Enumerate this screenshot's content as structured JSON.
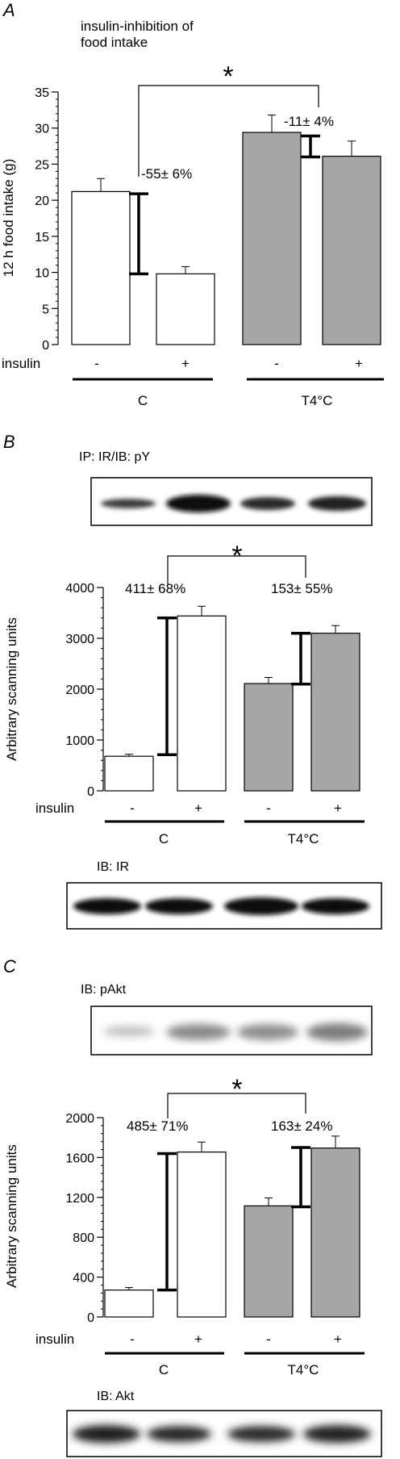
{
  "panel_a": {
    "letter": "A",
    "caption_line1": "insulin-inhibition of",
    "caption_line2": "food intake",
    "star": "*",
    "percent_left": "-55± 6%",
    "percent_right": "-11± 4%",
    "insulin_label": "insulin",
    "minus": "-",
    "plus": "+",
    "group_left": "C",
    "group_right": "T4°C"
  },
  "panel_b": {
    "letter": "B",
    "blot_top_label": "IP: IR/IB: pY",
    "blot_bottom_label": "IB: IR",
    "star": "*",
    "percent_left": "411± 68%",
    "percent_right": "153± 55%",
    "insulin_label": "insulin",
    "minus": "-",
    "plus": "+",
    "group_left": "C",
    "group_right": "T4°C"
  },
  "panel_c": {
    "letter": "C",
    "blot_top_label": "IB: pAkt",
    "blot_bottom_label": "IB: Akt",
    "star": "*",
    "percent_left": "485± 71%",
    "percent_right": "163± 24%",
    "insulin_label": "insulin",
    "minus": "-",
    "plus": "+",
    "group_left": "C",
    "group_right": "T4°C"
  },
  "chart_data": [
    {
      "type": "bar",
      "panel": "A",
      "ylabel": "12 h food intake (g)",
      "ylim": [
        0,
        35
      ],
      "yticks": [
        0,
        5,
        10,
        15,
        20,
        25,
        30,
        35
      ],
      "categories": [
        "C -",
        "C +",
        "T4°C -",
        "T4°C +"
      ],
      "values": [
        21.2,
        9.8,
        29.4,
        26.1
      ],
      "errors": [
        1.8,
        1.0,
        2.4,
        2.1
      ],
      "fills": [
        "#ffffff",
        "#ffffff",
        "#a6a6a6",
        "#a6a6a6"
      ],
      "delta_bars": [
        {
          "low": 9.8,
          "high": 20.9
        },
        {
          "low": 26.0,
          "high": 28.9
        }
      ]
    },
    {
      "type": "bar",
      "panel": "B",
      "ylabel": "Arbitrary scanning units",
      "ylim": [
        0,
        4000
      ],
      "yticks": [
        0,
        1000,
        2000,
        3000,
        4000
      ],
      "categories": [
        "C -",
        "C +",
        "T4°C -",
        "T4°C +"
      ],
      "values": [
        680,
        3440,
        2110,
        3100
      ],
      "errors": [
        40,
        190,
        120,
        150
      ],
      "fills": [
        "#ffffff",
        "#ffffff",
        "#a6a6a6",
        "#a6a6a6"
      ],
      "delta_bars": [
        {
          "low": 710,
          "high": 3400
        },
        {
          "low": 2100,
          "high": 3100
        }
      ]
    },
    {
      "type": "bar",
      "panel": "C",
      "ylabel": "Arbitrary scanning units",
      "ylim": [
        0,
        2000
      ],
      "yticks": [
        0,
        400,
        800,
        1200,
        1600,
        2000
      ],
      "categories": [
        "C -",
        "C +",
        "T4°C -",
        "T4°C +"
      ],
      "values": [
        270,
        1655,
        1115,
        1695
      ],
      "errors": [
        25,
        100,
        80,
        120
      ],
      "fills": [
        "#ffffff",
        "#ffffff",
        "#a6a6a6",
        "#a6a6a6"
      ],
      "delta_bars": [
        {
          "low": 270,
          "high": 1640
        },
        {
          "low": 1105,
          "high": 1700
        }
      ]
    }
  ]
}
